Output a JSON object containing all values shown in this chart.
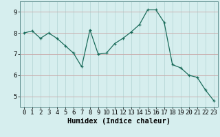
{
  "x": [
    0,
    1,
    2,
    3,
    4,
    5,
    6,
    7,
    8,
    9,
    10,
    11,
    12,
    13,
    14,
    15,
    16,
    17,
    18,
    19,
    20,
    21,
    22,
    23
  ],
  "y": [
    8.0,
    8.1,
    7.75,
    8.0,
    7.75,
    7.4,
    7.05,
    6.4,
    8.15,
    7.0,
    7.05,
    7.5,
    7.75,
    8.05,
    8.4,
    9.1,
    9.1,
    8.5,
    6.5,
    6.35,
    6.0,
    5.9,
    5.3,
    4.8
  ],
  "line_color": "#1a6b5a",
  "marker": "+",
  "marker_size": 3,
  "bg_color": "#d6eeee",
  "grid_color": "#b8d8d8",
  "xlabel": "Humidex (Indice chaleur)",
  "ylim": [
    4.5,
    9.5
  ],
  "xlim": [
    -0.5,
    23.5
  ],
  "yticks": [
    5,
    6,
    7,
    8,
    9
  ],
  "xticks": [
    0,
    1,
    2,
    3,
    4,
    5,
    6,
    7,
    8,
    9,
    10,
    11,
    12,
    13,
    14,
    15,
    16,
    17,
    18,
    19,
    20,
    21,
    22,
    23
  ],
  "tick_fontsize": 6.5,
  "xlabel_fontsize": 7.5,
  "spine_color": "#5a8a8a",
  "linewidth": 0.9
}
